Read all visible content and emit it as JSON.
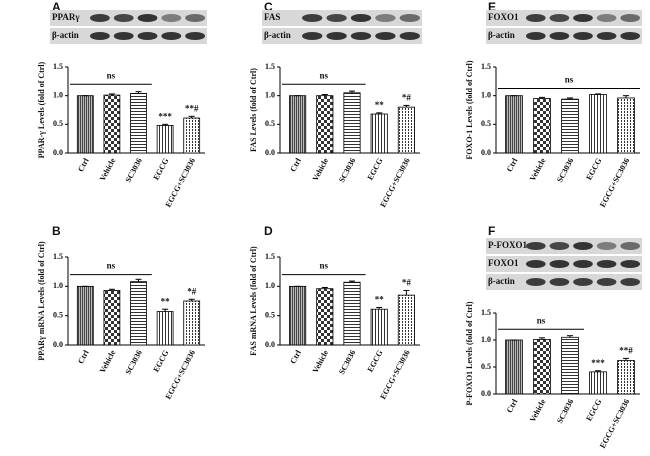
{
  "chart_data": [
    {
      "type": "bar",
      "panel": "A",
      "blot_labels": [
        "PPARγ",
        "β-actin"
      ],
      "y_label": "PPAR-γ Levels (fold of Ctrl)",
      "categories": [
        "Ctrl",
        "Vehicle",
        "SC3036",
        "EGCG",
        "EGCG+SC3036"
      ],
      "values": [
        1.0,
        1.01,
        1.04,
        0.48,
        0.61
      ],
      "errors": [
        0,
        0.02,
        0.03,
        0.02,
        0.03
      ],
      "annotations": [
        null,
        null,
        null,
        "***",
        "**#"
      ],
      "ns_label": "ns",
      "ylim": [
        0,
        1.5
      ],
      "yticks": [
        {
          "value": 0,
          "label": "0.0"
        },
        0.5,
        {
          "value": 1,
          "label": "1.0"
        },
        1.5
      ]
    },
    {
      "type": "bar",
      "panel": "C",
      "blot_labels": [
        "FAS",
        "β-actin"
      ],
      "y_label": "FAS Levels (fold of Ctrl)",
      "categories": [
        "Ctrl",
        "Vehicle",
        "SC3036",
        "EGCG",
        "EGCG+SC3036"
      ],
      "values": [
        1.0,
        1.0,
        1.05,
        0.68,
        0.8
      ],
      "errors": [
        0,
        0.02,
        0.03,
        0.02,
        0.03
      ],
      "annotations": [
        null,
        null,
        null,
        "**",
        "*#"
      ],
      "ns_label": "ns",
      "ylim": [
        0,
        1.5
      ],
      "yticks": [
        {
          "value": 0,
          "label": "0.0"
        },
        0.5,
        {
          "value": 1,
          "label": "1.0"
        },
        1.5
      ]
    },
    {
      "type": "bar",
      "panel": "E",
      "blot_labels": [
        "FOXO1",
        "β-actin"
      ],
      "y_label": "FOXO-1 Levels (fold of Ctrl)",
      "categories": [
        "Ctrl",
        "Vehicle",
        "SC3036",
        "EGCG",
        "EGCG+SC3036"
      ],
      "values": [
        1.0,
        0.95,
        0.94,
        1.02,
        0.96
      ],
      "errors": [
        0,
        0.02,
        0.02,
        0.01,
        0.04
      ],
      "annotations": [
        null,
        null,
        null,
        null,
        null
      ],
      "ns_label": "ns",
      "ylim": [
        0,
        1.5
      ],
      "yticks": [
        {
          "value": 0,
          "label": "0.0"
        },
        0.5,
        {
          "value": 1,
          "label": "1.0"
        },
        1.5
      ]
    },
    {
      "type": "bar",
      "panel": "B",
      "blot_labels": [],
      "y_label": "PPARγ  mRNA Levels (fold of Ctrl)",
      "categories": [
        "Ctrl",
        "Vehicle",
        "SC3036",
        "EGCG",
        "EGCG+SC3036"
      ],
      "values": [
        1.0,
        0.93,
        1.08,
        0.57,
        0.75
      ],
      "errors": [
        0,
        0.02,
        0.04,
        0.04,
        0.03
      ],
      "annotations": [
        null,
        null,
        null,
        "**",
        "*#"
      ],
      "ns_label": "ns",
      "ylim": [
        0,
        1.5
      ],
      "yticks": [
        {
          "value": 0,
          "label": "0.0"
        },
        0.5,
        {
          "value": 1,
          "label": "1.0"
        },
        1.5
      ]
    },
    {
      "type": "bar",
      "panel": "D",
      "blot_labels": [],
      "y_label": "FAS mRNA Levels (fold of Ctrl)",
      "categories": [
        "Ctrl",
        "Vehicle",
        "SC3036",
        "EGCG",
        "EGCG+SC3036"
      ],
      "values": [
        1.0,
        0.96,
        1.07,
        0.61,
        0.85
      ],
      "errors": [
        0,
        0.02,
        0.02,
        0.03,
        0.08
      ],
      "annotations": [
        null,
        null,
        null,
        "**",
        "*#"
      ],
      "ns_label": "ns",
      "ylim": [
        0,
        1.5
      ],
      "yticks": [
        {
          "value": 0,
          "label": "0.0"
        },
        0.5,
        {
          "value": 1,
          "label": "1.0"
        },
        1.5
      ]
    },
    {
      "type": "bar",
      "panel": "F",
      "blot_labels": [
        "P-FOXO1",
        "FOXO1",
        "β-actin"
      ],
      "y_label": "P-FOXO1 Levels (fold of Ctrl)",
      "categories": [
        "Ctrl",
        "Vehicle",
        "SC3036",
        "EGCG",
        "EGCG+SC3036"
      ],
      "values": [
        1.0,
        1.01,
        1.05,
        0.41,
        0.62
      ],
      "errors": [
        0,
        0.03,
        0.03,
        0.02,
        0.04
      ],
      "annotations": [
        null,
        null,
        null,
        "***",
        "**#"
      ],
      "ns_label": "ns",
      "ylim": [
        0,
        1.5
      ],
      "yticks": [
        {
          "value": 0,
          "label": "0.0"
        },
        0.5,
        {
          "value": 1,
          "label": "1.0"
        },
        1.5
      ]
    }
  ]
}
